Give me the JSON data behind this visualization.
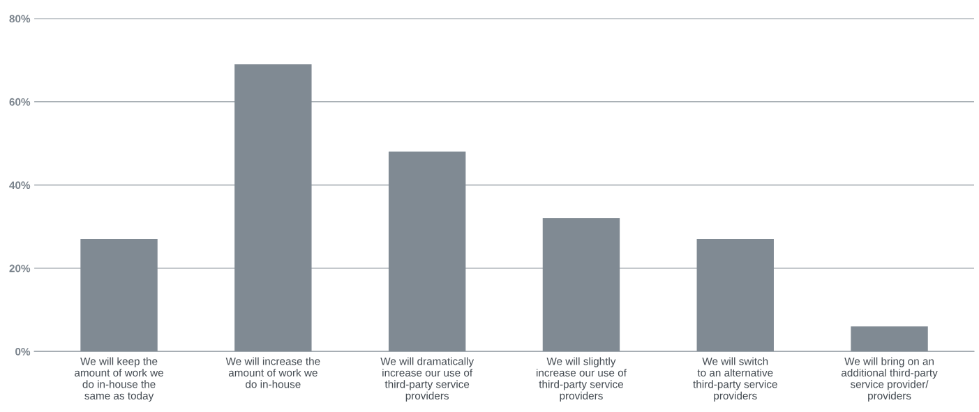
{
  "chart_data": {
    "type": "bar",
    "categories": [
      "We will keep the\namount of work we\ndo in-house the\nsame as today",
      "We will increase the\namount of work we\ndo in-house",
      "We will dramatically\nincrease our use of\nthird-party service\nproviders",
      "We will slightly\nincrease our use of\nthird-party service\nproviders",
      "We will switch\nto an alternative\nthird-party service\nproviders",
      "We will bring on an\nadditional third-party\nservice provider/\nproviders"
    ],
    "values": [
      27,
      69,
      48,
      32,
      27,
      6
    ],
    "color": "#808a93",
    "ylim": [
      0,
      80
    ],
    "yticks": [
      {
        "value": 0,
        "label": "0%"
      },
      {
        "value": 20,
        "label": "20%"
      },
      {
        "value": 40,
        "label": "40%"
      },
      {
        "value": 60,
        "label": "60%"
      },
      {
        "value": 80,
        "label": "80%"
      }
    ],
    "grid": "y"
  }
}
